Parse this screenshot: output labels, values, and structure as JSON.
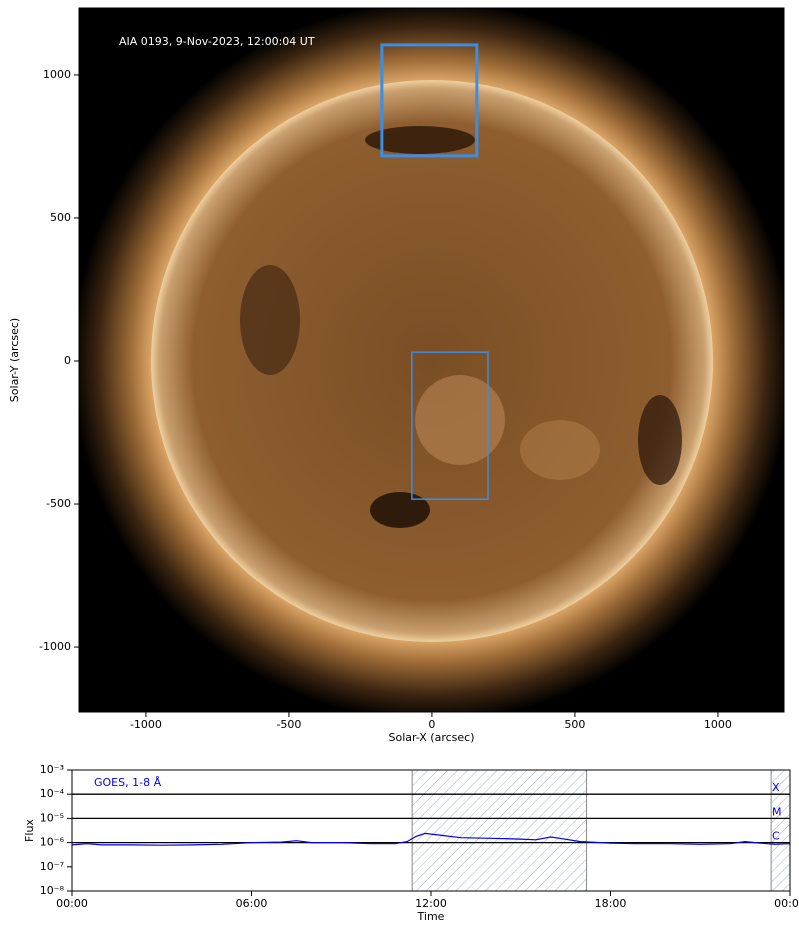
{
  "chart_data": [
    {
      "type": "image",
      "annotation": "AIA 0193, 9-Nov-2023, 12:00:04 UT",
      "x_label": "Solar-X (arcsec)",
      "y_label": "Solar-Y (arcsec)",
      "xlim": [
        -1234,
        1231
      ],
      "ylim": [
        -1227,
        1234
      ],
      "xticks": [
        -1000,
        -500,
        0,
        500,
        1000
      ],
      "yticks": [
        -1000,
        -500,
        0,
        500,
        1000
      ],
      "regions": [
        {
          "x": [
            -175,
            157
          ],
          "y": [
            717,
            1105
          ],
          "color": "#3a8ee6",
          "width": 3
        },
        {
          "x": [
            -70,
            196
          ],
          "y": [
            -483,
            31
          ],
          "color": "#3a8ee6",
          "width": 1.5
        }
      ]
    },
    {
      "type": "line",
      "annotation": "GOES, 1-8 Å",
      "x_label": "Time",
      "y_label": "Flux",
      "xlim": [
        0,
        24
      ],
      "ylim": [
        1e-08,
        0.001
      ],
      "ylog": true,
      "xticks": [
        {
          "value": 0,
          "label": "00:00"
        },
        {
          "value": 6,
          "label": "06:00"
        },
        {
          "value": 12,
          "label": "12:00"
        },
        {
          "value": 18,
          "label": "18:00"
        },
        {
          "value": 24,
          "label": "00:00"
        }
      ],
      "yticks": [
        {
          "value": 1e-08,
          "label": "10⁻⁸"
        },
        {
          "value": 1e-07,
          "label": "10⁻⁷"
        },
        {
          "value": 1e-06,
          "label": "10⁻⁶"
        },
        {
          "value": 1e-05,
          "label": "10⁻⁵"
        },
        {
          "value": 0.0001,
          "label": "10⁻⁴"
        },
        {
          "value": 0.001,
          "label": "10⁻³"
        }
      ],
      "levels": [
        {
          "label": "X",
          "value": 0.0001
        },
        {
          "label": "M",
          "value": 1e-05
        },
        {
          "label": "C",
          "value": 1e-06
        }
      ],
      "shaded": [
        [
          11.37,
          17.2
        ],
        [
          23.37,
          24
        ]
      ],
      "series": [
        {
          "color": "#0000ee",
          "x": [
            0,
            0.5,
            1,
            2,
            3,
            4,
            5,
            6,
            7,
            7.5,
            8,
            9,
            10,
            10.8,
            11.2,
            11.5,
            11.8,
            12.5,
            13,
            14,
            15,
            15.5,
            16,
            16.3,
            17,
            18,
            19,
            20,
            21,
            22,
            22.5,
            23,
            23.5,
            24
          ],
          "values": [
            8e-07,
            9e-07,
            8e-07,
            8e-07,
            7.8e-07,
            8e-07,
            8.5e-07,
            1e-06,
            1.05e-06,
            1.2e-06,
            1e-06,
            1e-06,
            9e-07,
            9e-07,
            1.1e-06,
            1.8e-06,
            2.4e-06,
            1.9e-06,
            1.6e-06,
            1.5e-06,
            1.4e-06,
            1.3e-06,
            1.7e-06,
            1.5e-06,
            1.1e-06,
            9.5e-07,
            9e-07,
            9e-07,
            8.5e-07,
            9e-07,
            1.1e-06,
            9.5e-07,
            8.5e-07,
            9e-07
          ]
        }
      ]
    }
  ]
}
